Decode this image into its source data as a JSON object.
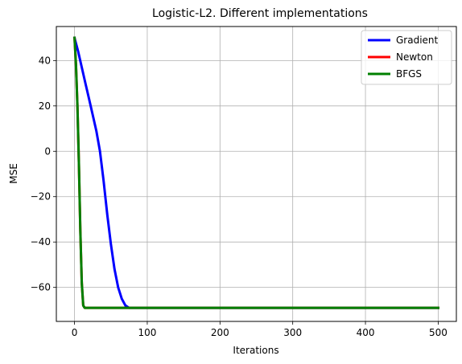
{
  "chart_data": {
    "type": "line",
    "title": "Logistic-L2. Different implementations",
    "xlabel": "Iterations",
    "ylabel": "MSE",
    "xlim": [
      -25,
      525
    ],
    "ylim": [
      -75,
      55
    ],
    "xticks": [
      0,
      100,
      200,
      300,
      400,
      500
    ],
    "yticks": [
      -60,
      -40,
      -20,
      0,
      20,
      40
    ],
    "grid": true,
    "legend_position": "top-right",
    "series": [
      {
        "name": "Gradient",
        "color": "#0000ff",
        "points": [
          [
            0,
            50
          ],
          [
            5,
            44
          ],
          [
            10,
            37
          ],
          [
            15,
            30
          ],
          [
            20,
            23
          ],
          [
            25,
            16
          ],
          [
            30,
            9
          ],
          [
            35,
            0
          ],
          [
            40,
            -13
          ],
          [
            45,
            -28
          ],
          [
            50,
            -41
          ],
          [
            55,
            -52
          ],
          [
            60,
            -60
          ],
          [
            65,
            -65
          ],
          [
            70,
            -68
          ],
          [
            75,
            -69
          ],
          [
            80,
            -69
          ],
          [
            100,
            -69
          ],
          [
            200,
            -69
          ],
          [
            300,
            -69
          ],
          [
            400,
            -69
          ],
          [
            500,
            -69
          ]
        ]
      },
      {
        "name": "Newton",
        "color": "#ff0000",
        "points": [
          [
            0,
            50
          ],
          [
            2,
            38
          ],
          [
            4,
            20
          ],
          [
            6,
            -5
          ],
          [
            8,
            -35
          ],
          [
            10,
            -58
          ],
          [
            12,
            -68
          ],
          [
            14,
            -69
          ],
          [
            20,
            -69
          ],
          [
            100,
            -69
          ],
          [
            200,
            -69
          ],
          [
            300,
            -69
          ],
          [
            400,
            -69
          ],
          [
            500,
            -69
          ]
        ]
      },
      {
        "name": "BFGS",
        "color": "#008000",
        "points": [
          [
            0,
            50
          ],
          [
            2,
            38
          ],
          [
            4,
            20
          ],
          [
            6,
            -5
          ],
          [
            8,
            -35
          ],
          [
            10,
            -58
          ],
          [
            12,
            -68
          ],
          [
            14,
            -69
          ],
          [
            20,
            -69
          ],
          [
            100,
            -69
          ],
          [
            200,
            -69
          ],
          [
            300,
            -69
          ],
          [
            400,
            -69
          ],
          [
            500,
            -69
          ]
        ]
      }
    ]
  }
}
